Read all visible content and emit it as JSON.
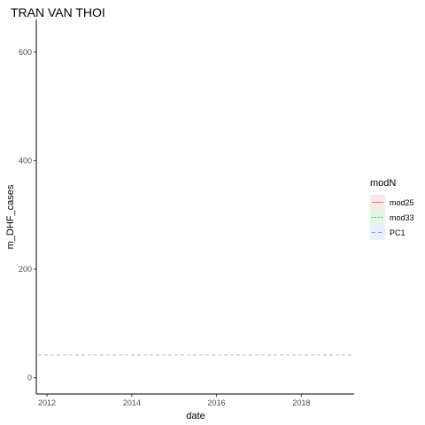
{
  "chart_data": {
    "type": "line",
    "title": "TRAN VAN THOI",
    "xlabel": "date",
    "ylabel": "m_DHF_cases",
    "x_ticks": [
      "2012",
      "2014",
      "2016",
      "2018"
    ],
    "y_ticks": [
      0,
      200,
      400,
      600
    ],
    "xlim": [
      "2011-10-01",
      "2019-04-01"
    ],
    "ylim": [
      -30,
      660
    ],
    "grid": false,
    "legend": {
      "title": "modN",
      "placement": "right",
      "entries": [
        {
          "name": "mod25",
          "color": "#F8766D",
          "linetype": "solid",
          "fill": "#fde8e6"
        },
        {
          "name": "mod33",
          "color": "#00BA38",
          "linetype": "dotted",
          "fill": "#e0f5e4"
        },
        {
          "name": "PC1",
          "color": "#619CFF",
          "linetype": "dashed",
          "fill": "#e8effe"
        }
      ]
    },
    "series": [],
    "reference_lines": [
      {
        "y": 42,
        "color": "#bdbdbd",
        "linetype": "dashed"
      }
    ]
  }
}
